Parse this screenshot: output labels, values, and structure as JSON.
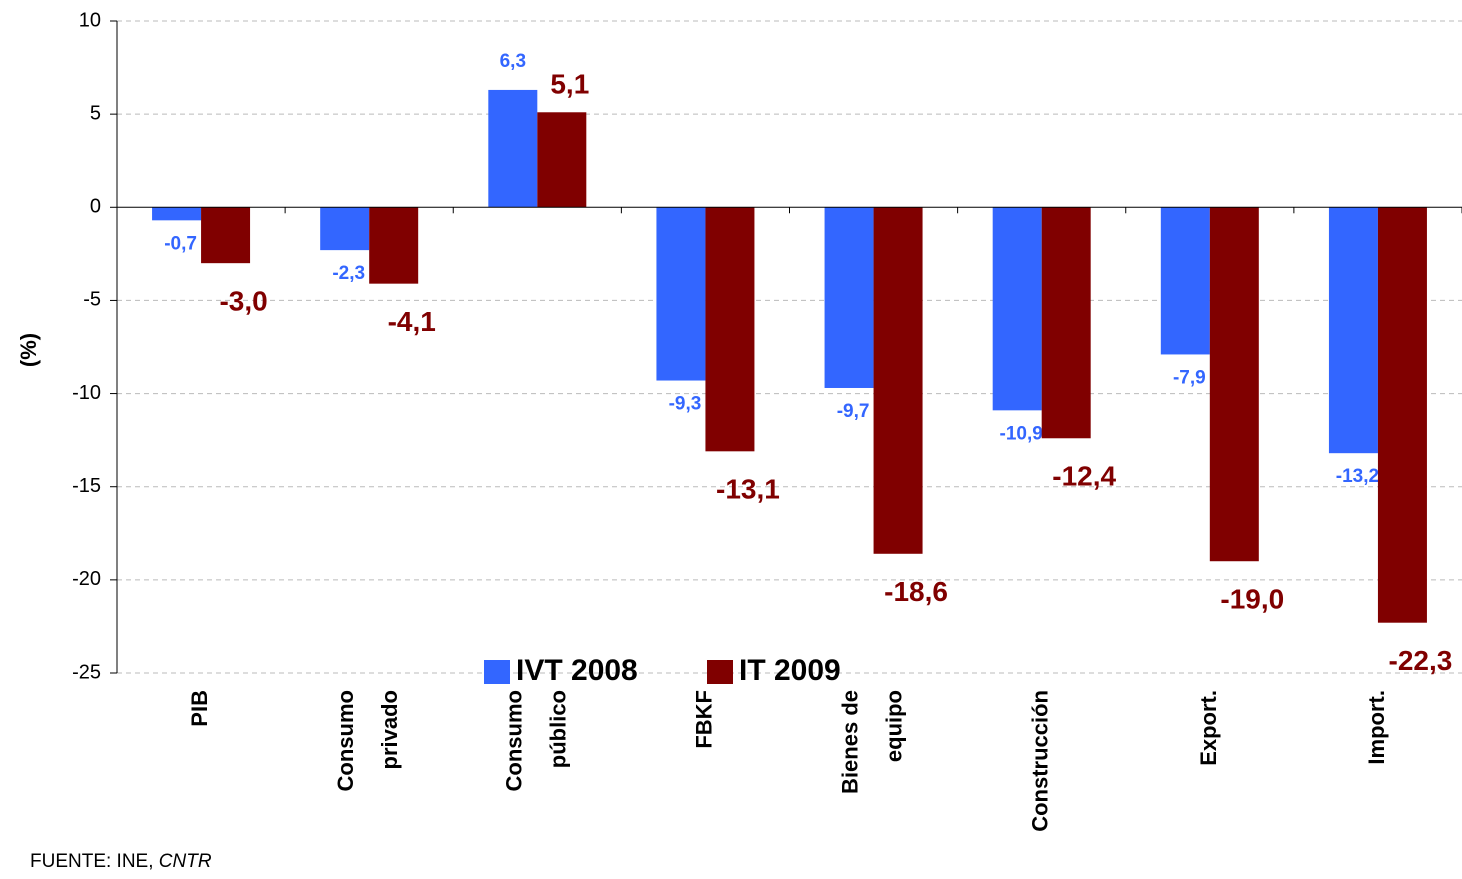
{
  "chart_data": {
    "type": "bar",
    "categories": [
      "PIB",
      "Consumo\nprivado",
      "Consumo\npúblico",
      "FBKF",
      "Bienes de\nequipo",
      "Construcción",
      "Export.",
      "Import."
    ],
    "series": [
      {
        "name": "IVT 2008",
        "color": "#3366ff",
        "values": [
          -0.7,
          -2.3,
          6.3,
          -9.3,
          -9.7,
          -10.9,
          -7.9,
          -13.2
        ],
        "value_labels": [
          "-0,7",
          "-2,3",
          "6,3",
          "-9,3",
          "-9,7",
          "-10,9",
          "-7,9",
          "-13,2"
        ]
      },
      {
        "name": "IT 2009",
        "color": "#800000",
        "values": [
          -3.0,
          -4.1,
          5.1,
          -13.1,
          -18.6,
          -12.4,
          -19.0,
          -22.3
        ],
        "value_labels": [
          "-3,0",
          "-4,1",
          "5,1",
          "-13,1",
          "-18,6",
          "-12,4",
          "-19,0",
          "-22,3"
        ]
      }
    ],
    "ylabel": "(%)",
    "ylim": [
      -25,
      10
    ],
    "yticks": [
      -25,
      -20,
      -15,
      -10,
      -5,
      0,
      5,
      10
    ],
    "grid": true,
    "source": "FUENTE: INE,",
    "source_italic": "CNTR"
  }
}
